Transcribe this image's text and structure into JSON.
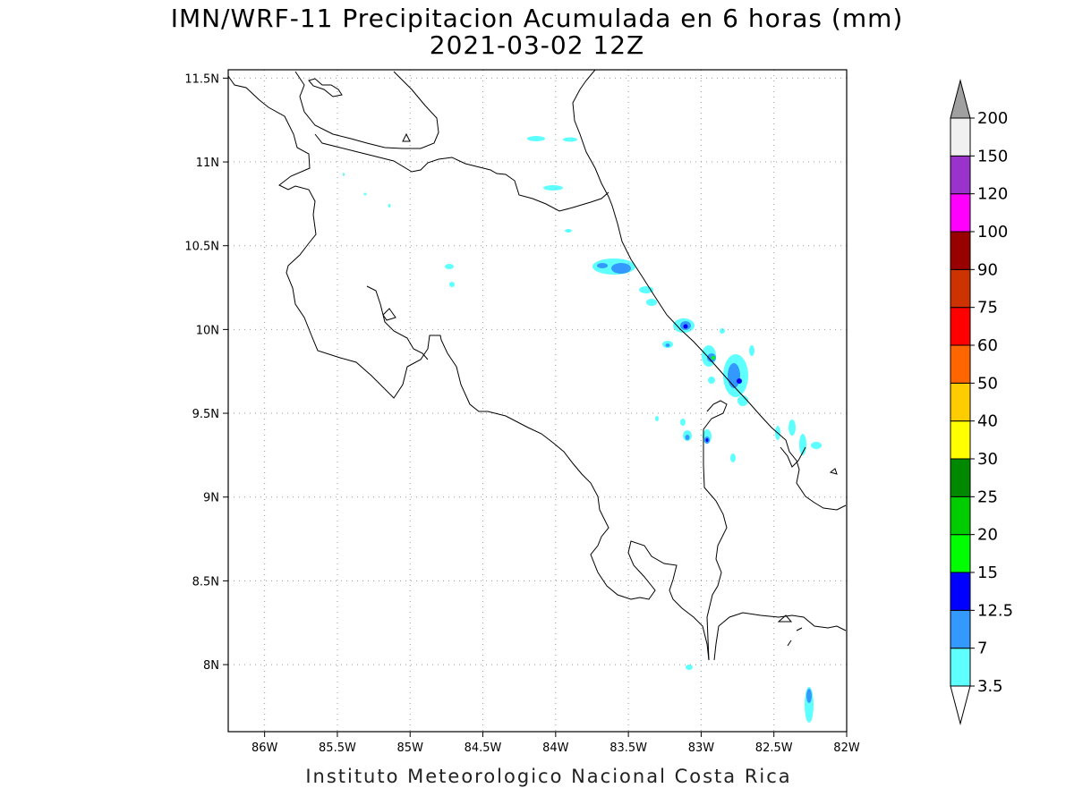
{
  "title": {
    "line1": "IMN/WRF-11 Precipitacion Acumulada en 6 horas (mm)",
    "line2": "2021-03-02 12Z"
  },
  "footer": "Instituto Meteorologico Nacional Costa Rica",
  "map": {
    "lon_range": [
      -86.25,
      -82.0
    ],
    "lat_range": [
      7.6,
      11.55
    ],
    "lon_ticks": [
      {
        "value": -86.0,
        "label": "86W"
      },
      {
        "value": -85.5,
        "label": "85.5W"
      },
      {
        "value": -85.0,
        "label": "85W"
      },
      {
        "value": -84.5,
        "label": "84.5W"
      },
      {
        "value": -84.0,
        "label": "84W"
      },
      {
        "value": -83.5,
        "label": "83.5W"
      },
      {
        "value": -83.0,
        "label": "83W"
      },
      {
        "value": -82.5,
        "label": "82.5W"
      },
      {
        "value": -82.0,
        "label": "82W"
      }
    ],
    "lat_ticks": [
      {
        "value": 8.0,
        "label": "8N"
      },
      {
        "value": 8.5,
        "label": "8.5N"
      },
      {
        "value": 9.0,
        "label": "9N"
      },
      {
        "value": 9.5,
        "label": "9.5N"
      },
      {
        "value": 10.0,
        "label": "10N"
      },
      {
        "value": 10.5,
        "label": "10.5N"
      },
      {
        "value": 11.0,
        "label": "11N"
      },
      {
        "value": 11.5,
        "label": "11.5N"
      }
    ],
    "grid": true
  },
  "colorbar": {
    "levels": [
      {
        "label": "3.5",
        "color": "#5effff"
      },
      {
        "label": "7",
        "color": "#3399ff"
      },
      {
        "label": "12.5",
        "color": "#0000ff"
      },
      {
        "label": "15",
        "color": "#00ff00"
      },
      {
        "label": "20",
        "color": "#00cc00"
      },
      {
        "label": "25",
        "color": "#008800"
      },
      {
        "label": "30",
        "color": "#ffff00"
      },
      {
        "label": "40",
        "color": "#ffcc00"
      },
      {
        "label": "50",
        "color": "#ff6600"
      },
      {
        "label": "60",
        "color": "#ff0000"
      },
      {
        "label": "75",
        "color": "#cc3300"
      },
      {
        "label": "90",
        "color": "#990000"
      },
      {
        "label": "100",
        "color": "#ff00ff"
      },
      {
        "label": "120",
        "color": "#9933cc"
      },
      {
        "label": "150",
        "color": "#f0f0f0"
      },
      {
        "label": "200",
        "color": "#a0a0a0"
      }
    ]
  },
  "precip_cells": [
    {
      "lon": -83.55,
      "lat": 10.38,
      "level": 1
    },
    {
      "lon": -83.47,
      "lat": 10.38,
      "level": 1
    },
    {
      "lon": -83.05,
      "lat": 10.03,
      "level": 2
    },
    {
      "lon": -82.88,
      "lat": 9.83,
      "level": 3
    },
    {
      "lon": -82.72,
      "lat": 9.71,
      "level": 2
    },
    {
      "lon": -82.92,
      "lat": 9.34,
      "level": 2
    },
    {
      "lon": -82.2,
      "lat": 7.79,
      "level": 1
    },
    {
      "lon": -83.18,
      "lat": 9.91,
      "level": 1
    }
  ]
}
